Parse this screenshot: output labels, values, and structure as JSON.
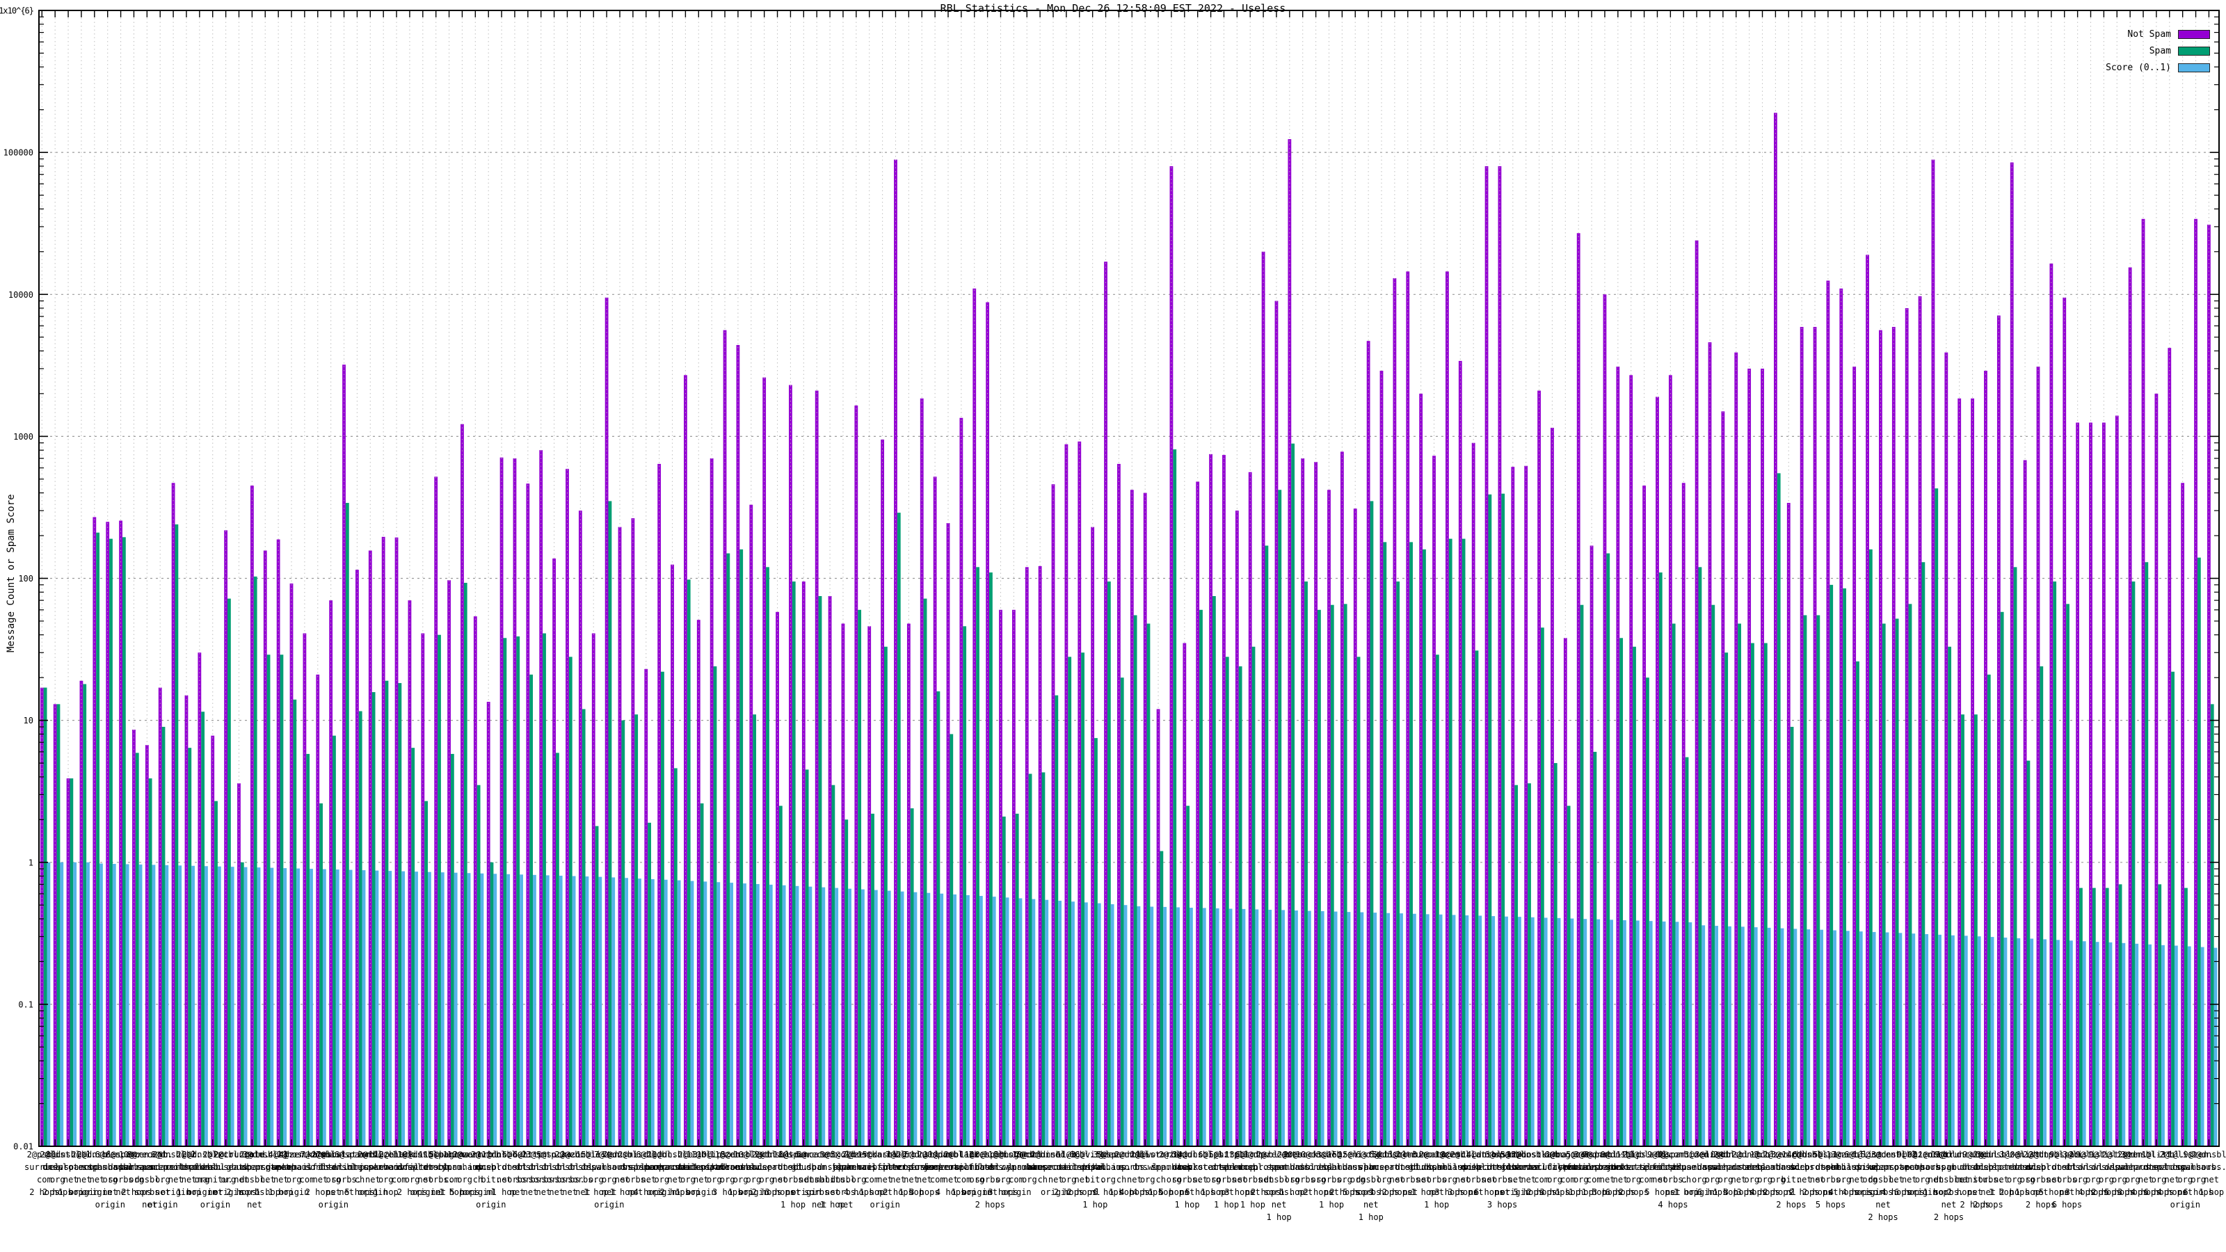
{
  "chart_data": {
    "type": "bar",
    "title": "RBL Statistics - Mon Dec 26 12:58:09 EST 2022 - Useless",
    "ylabel": "Message Count or Spam Score",
    "xlabel": "",
    "yscale": "log",
    "ylim": [
      0.01,
      1000000
    ],
    "grid": {
      "horizontal": "dashed",
      "vertical": "dotted",
      "border": true,
      "right_axis_mirrored": true
    },
    "legend_position": "top-right",
    "ytick_labels": [
      "1x10^{6}",
      "100000",
      "10000",
      "1000",
      "100",
      "10",
      "1",
      "0.1",
      "0.01"
    ],
    "ytick_values": [
      1000000,
      100000,
      10000,
      1000,
      100,
      10,
      1,
      0.1,
      0.01
    ],
    "colors": {
      "not_spam": "#9400d3",
      "spam": "#009e73",
      "score": "#56b4e9",
      "grid_h": "#9a9a9a",
      "grid_v": "#b9b9b9",
      "border": "#000000",
      "background": "#ffffff"
    },
    "series": [
      {
        "name": "Not Spam",
        "color_key": "not_spam",
        "values": [
          17,
          13,
          3.9,
          19,
          270,
          250,
          255,
          8.6,
          6.7,
          17,
          470,
          15,
          30,
          7.8,
          218,
          3.6,
          450,
          157,
          188,
          92,
          41,
          21,
          70,
          3200,
          115,
          157,
          196,
          194,
          70,
          41,
          520,
          97,
          1220,
          54,
          13.5,
          710,
          700,
          465,
          800,
          138,
          590,
          300,
          41,
          9500,
          230,
          265,
          23,
          640,
          125,
          2700,
          51,
          700,
          5600,
          4400,
          330,
          2600,
          58,
          2300,
          95,
          2100,
          75,
          48,
          1650,
          46,
          950,
          89000,
          48,
          1850,
          520,
          245,
          1350,
          11000,
          8800,
          60,
          60,
          120,
          122,
          460,
          880,
          920,
          230,
          17000,
          640,
          420,
          400,
          12,
          80000,
          35,
          480,
          750,
          740,
          300,
          560,
          20000,
          9000,
          124000,
          700,
          660,
          420,
          780,
          310,
          4700,
          2900,
          13000,
          14500,
          2000,
          730,
          14500,
          3400,
          900,
          80000,
          80000,
          610,
          620,
          2100,
          1150,
          38,
          27000,
          170,
          10000,
          3100,
          2700,
          450,
          1900,
          2700,
          470,
          24000,
          4600,
          1500,
          3900,
          3000,
          3000,
          190000,
          340,
          5900,
          5900,
          12500,
          11000,
          3100,
          19000,
          5600,
          5900,
          8000,
          9700,
          89000,
          3900,
          1850,
          1850,
          2900,
          7100,
          85000,
          680,
          3100,
          16500,
          9500,
          1250,
          1250,
          1250,
          1400,
          15500,
          34000,
          2000,
          4200,
          470,
          34000,
          31000
        ]
      },
      {
        "name": "Spam",
        "color_key": "spam",
        "values": [
          17,
          13,
          3.9,
          18,
          210,
          190,
          195,
          5.9,
          3.9,
          9,
          240,
          6.4,
          11.5,
          2.7,
          72,
          1,
          103,
          29,
          29,
          14,
          5.8,
          2.6,
          7.8,
          340,
          11.6,
          15.8,
          19,
          18.3,
          6.4,
          2.7,
          40,
          5.8,
          93,
          3.5,
          1,
          38,
          39,
          21,
          41,
          5.9,
          28,
          12,
          1.8,
          350,
          10,
          11,
          1.9,
          22,
          4.6,
          98,
          2.6,
          24,
          150,
          160,
          11,
          120,
          2.5,
          95,
          4.5,
          75,
          3.5,
          2,
          60,
          2.2,
          33,
          290,
          2.4,
          72,
          16,
          8,
          46,
          120,
          110,
          2.1,
          2.2,
          4.2,
          4.3,
          15,
          28,
          30,
          7.5,
          95,
          20,
          55,
          48,
          1.2,
          810,
          2.5,
          60,
          75,
          28,
          24,
          33,
          170,
          420,
          890,
          95,
          60,
          65,
          66,
          28,
          350,
          180,
          95,
          180,
          160,
          29,
          190,
          190,
          31,
          390,
          395,
          3.5,
          3.6,
          45,
          5,
          2.5,
          65,
          6,
          150,
          38,
          33,
          20,
          110,
          48,
          5.5,
          120,
          65,
          30,
          48,
          35,
          35,
          550,
          9,
          55,
          55,
          90,
          85,
          26,
          160,
          48,
          52,
          66,
          130,
          430,
          33,
          11,
          11,
          21,
          58,
          120,
          5.2,
          24,
          95,
          66,
          0.66,
          0.66,
          0.66,
          0.7,
          95,
          130,
          0.7,
          22,
          0.66,
          140,
          13
        ]
      },
      {
        "name": "Score (0..1)",
        "color_key": "score",
        "values": [
          1,
          1,
          1,
          1,
          0.98,
          0.975,
          0.97,
          0.965,
          0.96,
          0.955,
          0.95,
          0.945,
          0.94,
          0.935,
          0.93,
          0.925,
          0.92,
          0.915,
          0.91,
          0.905,
          0.9,
          0.895,
          0.89,
          0.885,
          0.88,
          0.875,
          0.87,
          0.865,
          0.86,
          0.855,
          0.85,
          0.845,
          0.84,
          0.835,
          0.83,
          0.825,
          0.82,
          0.815,
          0.81,
          0.805,
          0.8,
          0.795,
          0.79,
          0.783,
          0.776,
          0.768,
          0.761,
          0.754,
          0.747,
          0.739,
          0.732,
          0.725,
          0.718,
          0.71,
          0.703,
          0.696,
          0.689,
          0.681,
          0.674,
          0.667,
          0.66,
          0.652,
          0.645,
          0.638,
          0.631,
          0.623,
          0.616,
          0.609,
          0.602,
          0.594,
          0.587,
          0.58,
          0.573,
          0.565,
          0.558,
          0.551,
          0.544,
          0.536,
          0.529,
          0.522,
          0.515,
          0.507,
          0.5,
          0.49,
          0.487,
          0.485,
          0.482,
          0.479,
          0.477,
          0.474,
          0.471,
          0.469,
          0.466,
          0.463,
          0.461,
          0.458,
          0.455,
          0.453,
          0.45,
          0.447,
          0.445,
          0.442,
          0.439,
          0.437,
          0.434,
          0.431,
          0.429,
          0.426,
          0.423,
          0.421,
          0.418,
          0.415,
          0.413,
          0.41,
          0.407,
          0.405,
          0.402,
          0.399,
          0.397,
          0.394,
          0.391,
          0.389,
          0.386,
          0.383,
          0.381,
          0.378,
          0.36,
          0.357,
          0.354,
          0.352,
          0.349,
          0.346,
          0.343,
          0.34,
          0.337,
          0.335,
          0.332,
          0.329,
          0.326,
          0.323,
          0.321,
          0.318,
          0.315,
          0.312,
          0.309,
          0.306,
          0.304,
          0.301,
          0.298,
          0.295,
          0.292,
          0.29,
          0.287,
          0.284,
          0.281,
          0.278,
          0.275,
          0.273,
          0.27,
          0.267,
          0.264,
          0.261,
          0.259,
          0.256,
          0.253,
          0.25
        ]
      }
    ],
    "categories": [
      "2@psbl.\nsurriel.\ncom\n2 hops",
      "2@list.\ndnswl.\norg\n2 hops",
      "8@dnsbl-1.\nuceprotect.\nnet\n1 hop",
      "2@bl.\nspamcop.\nnet\norigin",
      "2@dnsbl.\nsorbs.\nnet\norigin",
      "6@zen.\nspamhaus.\norg\nnet\norigin",
      "6@spam.\ndnsbl.\nsorbs.\nnet",
      "10@zen.\nspamhaus.\norg\n2 hops",
      "8@recent.\nspam.\ndnsbl.\nsorbs.\nnet",
      "2@b.\nbarracudacentral.\norg\nnet\norigin",
      "6@dnsbl-2.\nuceprotect.\nnet\norigin",
      "2@bl.\nmailspike.\nnet\n1 hop",
      "2@dnsbl.\ndronebl.\norg\norigin",
      "2@ix.\ndnsbl.\nmanitu.\nnet\norigin",
      "2@cbl.\nabuseat.\norg\norigin",
      "2@truncate.\ngbudb.\nnet\n2 hops",
      "2@old.\nspam.\ndnsbl.\nsorbs.\nnet",
      "3@dnsbl-3.\nuceprotect.\nnet\n1 hop",
      "4@bl.\nspamcop.\nnet\n1 hop",
      "4@zen.\nspamhaus.\norg\norigin",
      "2@hostkarma.\njunkemailfilter.\ncom",
      "7@dnsbl.\nsorbs.\nnet\n2 hops",
      "7@list.\ndnswl.\norg\nnet\norigin",
      "2@escalations.\ndnsbl.\nsorbs.\nnet",
      "6@spamrbl.\nimp.\nch\n5 hops",
      "2@rbl.\ninterserver.\nnet\norigin",
      "11@zen.\nspamhaus.\norg\n1 hop",
      "2@black.\njunkemailfilter.\ncom",
      "11@list.\ndnswl.\norg\n2 hops",
      "10@dnsbl-1.\nuceprotect.\nnet\norigin",
      "11@spam.\ndnsbl.\nsorbs.\nnet",
      "5@bogons.\ncymru.\ncom\n1 hop",
      "10@zen.\nspamhaus.\norg\n5 hops",
      "2@wormrbl.\nimp.\nch\norigin",
      "2@virbl.\ndnsbl.\nbit.\nnl\norigin",
      "11@dnsbl-2.\nuceprotect.\nnet\n1 hop",
      "6@dul.\ndnsbl.\nsorbs.\nnet",
      "6@http.\ndnsbl.\nsorbs.\nnet",
      "3@smtp.\ndnsbl.\nsorbs.\nnet",
      "5@socks.\ndnsbl.\nsorbs.\nnet",
      "2@web.\ndnsbl.\nsorbs.\nnet",
      "2@zombie.\ndnsbl.\nsorbs.\nnet",
      "15@list.\ndnswl.\norg\n1 hop",
      "7@zen.\nspamhaus.\norg\nnet\norigin",
      "7@dnsbl.\nsorbs.\nnet\n1 hop",
      "2@misc.\ndnsbl.\nsorbs.\nnet",
      "6@bl.\nspamcop.\nnet\n4 hops",
      "2@dbl.\nspamhaus.\norg\norigin",
      "11@dnsbl-3.\nuceprotect.\nnet\n2 hops",
      "2@b.\nbarracudacentral.\norg\n1 hop",
      "11@bl.\nmailspike.\nnet\norigin",
      "10@ips.\nbackscatterer.\norg",
      "11@zen.\nspamhaus.\norg\n3 hops",
      "5@dnsbl.\ndronebl.\norg\n1 hop",
      "10@list.\ndnswl.\norg\norigin",
      "2@cbl.\nabuseat.\norg\n2 hops",
      "2@dnsbl-1.\nuceprotect.\nnet\n3 hops",
      "11@spam.\ndnsbl.\nsorbs.\nnet\n1 hop",
      "6@truncate.\ngbudb.\nnet\norigin",
      "6@recent.\nspam.\ndnsbl.\nsorbs.\nnet",
      "3@ix.\ndnsbl.\nmanitu.\nnet\n1 hop",
      "5@old.\nspam.\ndnsbl.\nsorbs.\nnet",
      "2@zen.\nspamhaus.\norg\n4 hops",
      "2@hostkarma.\njunkemailfilter.\ncom\n1 hop",
      "15@dnsbl-2.\nuceprotect.\nnet\nnet\norigin",
      "7@bl.\nspamcop.\nnet\n2 hops",
      "2@rbl.\ninterserver.\nnet\n1 hop",
      "6@dnsbl.\nsorbs.\nnet\n3 hops",
      "2@0spam.\nfusionzero.\ncom",
      "11@dnsbl-1.\nuceprotect.\nnet\n4 hops",
      "2@black.\njunkemailfilter.\ncom\n1 hop",
      "11@zen.\nspamhaus.\norg\norigin",
      "10@spam.\ndnsbl.\nsorbs.\nnet\n2 hops",
      "11@list.\ndnswl.\norg\n3 hops",
      "5@bogons.\ncymru.\ncom\norigin",
      "10@dbl.\nspamhaus.\norg",
      "2@combined.\nabuse.\nch",
      "2@dnsbl-3.\nuceprotect.\nnet\norigin",
      "11@b.\nbarracudacentral.\norg\n2 hops",
      "6@bl.\nmailspike.\nnet\n2 hops",
      "6@virbl.\ndnsbl.\nbit.\nnl\n1 hop",
      "3@zen.\nspamhaus.\norg\n6 hops",
      "5@spamrbl.\nimp.\nch\n1 hop",
      "2@dnsbl.\nsorbs.\nnet\n4 hops",
      "2@list.\ndnswl.\norg\n4 hops",
      "1@wormrbl.\nimp.\nch\n1 hop",
      "2@zen.\nspamhaus.\norg\n5 hops",
      "3@dul.\ndnsbl.\nsorbs.\nnet\n1 hop",
      "14@dnsbl-1.\nuceprotect.\nnet\n5 hops",
      "6@ips.\nbackscatterer.\norg\n1 hop",
      "5@http.\ndnsbl.\nsorbs.\nnet\n1 hop",
      "13@bl.\nspamcop.\nnet\n3 hops",
      "6@smtp.\ndnsbl.\nsorbs.\nnet\n1 hop",
      "11@dnsbl-2.\nuceprotect.\nnet\n2 hops",
      "2@recent.\nspam.\ndnsbl.\nsorbs.\nnet\n1 hop",
      "2@zen.\nspamhaus.\norg\n1 hop",
      "10@socks.\ndnsbl.\nsorbs.\nnet",
      "10@dnsbl.\ndronebl.\norg\n2 hops",
      "3@web.\ndnsbl.\nsorbs.\nnet\n1 hop",
      "15@zen.\nspamhaus.\norg\n2 hops",
      "15@list.\ndnswl.\norg\n5 hops",
      "6@old.\nspam.\ndnsbl.\nsorbs.\nnet\n1 hop",
      "6@cbl.\nabuseat.\norg\n3 hops",
      "5@dnsbl-3.\nuceprotect.\nnet\n2 hops",
      "3@zombie.\ndnsbl.\nsorbs.\nnet",
      "2@truncate.\ngbudb.\nnet\n1 hop",
      "2@misc.\ndnsbl.\nsorbs.\nnet\n1 hop",
      "1@zen.\nspamhaus.\norg\n3 hops",
      "2@bl.\nmailspike.\nnet\n3 hops",
      "3@escalations.\ndnsbl.\nsorbs.\nnet",
      "14@dnsbl-1.\nuceprotect.\nnet\n6 hops",
      "6@spam.\ndnsbl.\nsorbs.\nnet\n3 hops",
      "5@rbl.\ninterserver.\nnet\norigin",
      "13@dnsbl.\nsorbs.\nnet\n5 hops",
      "2@hostkarma.\njunkemailfilter.\ncom\n2 hops",
      "6@b.\nbarracudacentral.\norg\n3 hops",
      "1@bogons.\ncymru.\ncom\n1 hop",
      "5@zen.\nspamhaus.\norg\n1 hop",
      "3@0spam.\nfusionzero.\ncom\n1 hop",
      "9@dnsbl-2.\nuceprotect.\nnet\n3 hops",
      "0@dnsbl.\nsorbs.\nnet\n6 hops",
      "11@ips.\nbackscatterer.\norg\n2 hops",
      "11@black.\njunkemailfilter.\ncom",
      "9@bl.\nspamcop.\nnet\n5 hops",
      "9@spam.\ndnsbl.\nsorbs.\nnet\n4 hops",
      "2@combined.\nabuse.\nch\n1 hop",
      "3@zen.\nspamhaus.\norg\norigin",
      "3@list.\ndnswl.\norg\n6 hops",
      "0@dbl.\nspamhaus.\norg\n1 hop",
      "2@dnsbl-3.\nuceprotect.\nnet\n3 hops",
      "2@dnsbl.\ndronebl.\norg\n3 hops",
      "1@cbl.\nabuseat.\norg\n4 hops",
      "2@zen.\nspamhaus.\norg\n2 hops",
      "3@virbl.\ndnsbl.\nbit.\nnl\n2 hops",
      "14@dnsbl.\nsorbs.\nnet\n2 hops",
      "6@dnsbl-1.\nuceprotect.\nnet\n2 hops",
      "5@spam.\ndnsbl.\nsorbs.\nnet\n5 hops",
      "13@zen.\nspamhaus.\norg\n4 hops",
      "6@bl.\nmailspike.\nnet\n4 hops",
      "1@list.\ndnswl.\norg\norigin",
      "5@recent.\nspam.\ndnsbl.\nsorbs.\nnet\n2 hops",
      "3@dnsbl-2.\nuceprotect.\nnet\n4 hops",
      "9@bl.\nspamcop.\nnet\n6 hops",
      "0@zen.\nspamhaus.\norg\norigin",
      "11@dnsbl.\nsorbs.\nnet\n1 hop",
      "11@old.\nspam.\ndnsbl.\nsorbs.\nnet\n2 hops",
      "9@truncate.\ngbudb.\nnet\n2 hops",
      "9@ix.\ndnsbl.\nmanitu.\nnet\n2 hops",
      "2@dul.\ndnsbl.\nsorbs.\nnet\n2 hops",
      "3@dnsbl-1.\nuceprotect.\nnet\n1 hop",
      "3@zen.\nspamhaus.\norg\n2 hops",
      "0@list.\ndnswl.\norg\n1 hop",
      "2@http.\ndnsbl.\nsorbs.\nnet\n2 hops",
      "2@dnsbl-2.\nuceprotect.\nnet\n5 hops",
      "9@spam.\ndnsbl.\nsorbs.\nnet\n6 hops",
      "3@list.\ndnswl.\norg\n3 hops",
      "9@list.\ndnswl.\norg\n4 hops",
      "9@list.\ndnswl.\norg\n2 hops",
      "2@list.\ndnswl.\norg\n5 hops",
      "2@zen.\nspamhaus.\norg\n3 hops",
      "3@dnsbl-3.\nuceprotect.\nnet\n4 hops",
      "1@list.\ndnswl.\norg\n6 hops",
      "2@bl.\nspamcop.\nnet\n4 hops",
      "1@list.\ndnswl.\norg\nnet\norigin",
      "9@zen.\nspamhaus.\norg\n6 hops",
      "2@dnsbl.\nsorbs.\nnet\n1 hop"
    ]
  }
}
